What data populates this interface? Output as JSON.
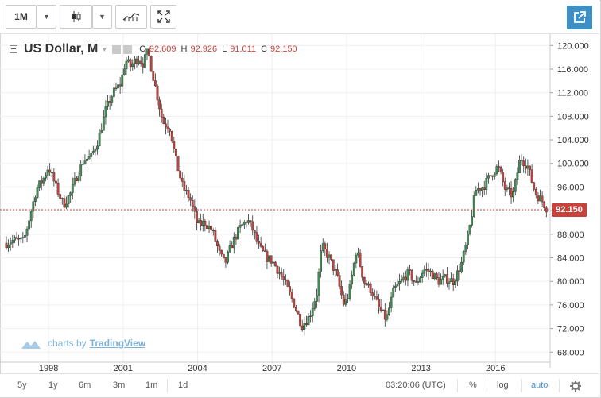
{
  "toolbar": {
    "interval": "1M",
    "share_icon": "share-out-icon"
  },
  "legend": {
    "symbol": "US Dollar, M",
    "o_label": "O",
    "o_value": "92.609",
    "h_label": "H",
    "h_value": "92.926",
    "l_label": "L",
    "l_value": "91.011",
    "c_label": "C",
    "c_value": "92.150"
  },
  "price_tag": "92.150",
  "watermark": {
    "prefix": "charts by",
    "brand": "TradingView"
  },
  "bottom": {
    "ranges": [
      "5y",
      "1y",
      "6m",
      "3m",
      "1m",
      "1d"
    ],
    "time": "03:20:06 (UTC)",
    "percent": "%",
    "log": "log",
    "auto": "auto"
  },
  "colors": {
    "up": "#3e8e54",
    "down": "#c8423b",
    "accent": "#3d8fc4"
  },
  "chart_data": {
    "type": "candlestick",
    "title": "US Dollar, M",
    "last_value": 92.15,
    "y_ticks": [
      "120.000",
      "116.000",
      "112.000",
      "108.000",
      "104.000",
      "100.000",
      "96.000",
      "92.000",
      "88.000",
      "84.000",
      "80.000",
      "76.000",
      "72.000",
      "68.000"
    ],
    "x_ticks": [
      "1998",
      "2001",
      "2004",
      "2007",
      "2010",
      "2013",
      "2016"
    ],
    "ylim": [
      67.5,
      123
    ],
    "xlim": [
      1996.3,
      2018.2
    ],
    "grid": true,
    "series": [
      {
        "x": [
          1996.3,
          1996.6,
          1997.0,
          1997.3,
          1997.5,
          1997.8,
          1998.0,
          1998.3,
          1998.6,
          1998.9,
          1999.1,
          1999.4,
          1999.7,
          2000.0,
          2000.3,
          2000.6,
          2000.9,
          2001.1,
          2001.3,
          2001.6,
          2001.8,
          2002.0,
          2002.3,
          2002.6,
          2002.9,
          2003.1,
          2003.4,
          2003.7,
          2004.0,
          2004.3,
          2004.6,
          2004.9,
          2005.1,
          2005.4,
          2005.7,
          2006.0,
          2006.2,
          2006.5,
          2006.8,
          2007.0,
          2007.3,
          2007.6,
          2007.9,
          2008.2,
          2008.5,
          2008.8,
          2009.0,
          2009.3,
          2009.6,
          2009.9,
          2010.1,
          2010.4,
          2010.7,
          2011.0,
          2011.3,
          2011.6,
          2011.9,
          2012.2,
          2012.5,
          2012.8,
          2013.1,
          2013.4,
          2013.7,
          2014.0,
          2014.3,
          2014.6,
          2014.9,
          2015.2,
          2015.5,
          2015.8,
          2016.1,
          2016.4,
          2016.7,
          2017.0,
          2017.3,
          2017.6,
          2017.9,
          2018.1
        ],
        "y": [
          86.5,
          87.0,
          86.8,
          92.0,
          95.5,
          97.5,
          99.5,
          96.0,
          93.0,
          95.0,
          97.5,
          100.5,
          101.0,
          104.0,
          109.0,
          112.0,
          113.5,
          117.5,
          116.5,
          118.0,
          117.0,
          119.0,
          113.0,
          107.0,
          106.0,
          101.0,
          96.0,
          94.0,
          89.5,
          90.0,
          88.5,
          84.5,
          83.0,
          86.5,
          89.0,
          90.5,
          89.0,
          85.5,
          84.0,
          83.5,
          81.5,
          79.0,
          76.0,
          72.5,
          74.0,
          78.0,
          86.0,
          84.0,
          81.0,
          76.0,
          78.0,
          85.5,
          80.0,
          78.5,
          75.5,
          73.5,
          78.5,
          80.0,
          81.5,
          79.5,
          82.0,
          81.5,
          80.0,
          80.5,
          80.0,
          82.5,
          87.5,
          95.5,
          96.0,
          98.0,
          99.5,
          95.5,
          94.5,
          101.0,
          99.5,
          95.0,
          93.5,
          92.15
        ]
      }
    ]
  }
}
